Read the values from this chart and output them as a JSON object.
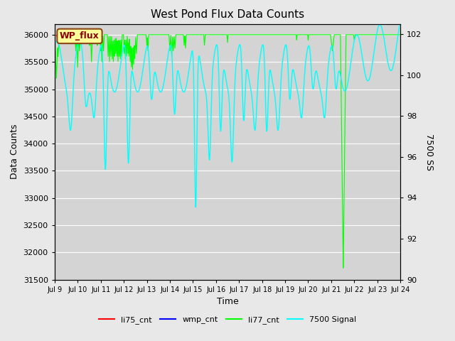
{
  "title": "West Pond Flux Data Counts",
  "xlabel": "Time",
  "ylabel_left": "Data Counts",
  "ylabel_right": "7500 SS",
  "ylim_left": [
    31500,
    36200
  ],
  "ylim_right": [
    90,
    102.5
  ],
  "fig_bg": "#e8e8e8",
  "ax_bg": "#d4d4d4",
  "grid_color": "#ffffff",
  "annotation_text": "WP_flux",
  "annotation_facecolor": "#ffff99",
  "annotation_edgecolor": "#8B4513",
  "annotation_textcolor": "#8B0000",
  "right_ticks": [
    90,
    92,
    94,
    96,
    98,
    100,
    102
  ],
  "left_ticks": [
    31500,
    32000,
    32500,
    33000,
    33500,
    34000,
    34500,
    35000,
    35500,
    36000
  ],
  "xlim": [
    9.0,
    24.0
  ],
  "r_min": 90,
  "r_max": 102,
  "l_min": 31500,
  "l_max": 36200
}
